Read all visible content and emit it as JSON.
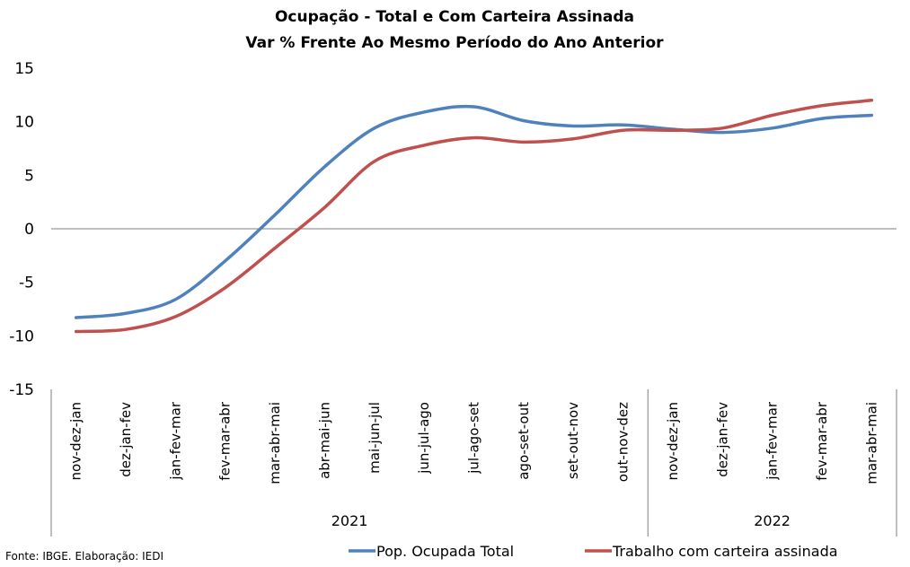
{
  "chart_data": {
    "type": "line",
    "title": "Ocupação - Total e Com Carteira Assinada",
    "subtitle": "Var % Frente Ao Mesmo Período do Ano Anterior",
    "categories": [
      "nov-dez-jan",
      "dez-jan-fev",
      "jan-fev-mar",
      "fev-mar-abr",
      "mar-abr-mai",
      "abr-mai-jun",
      "mai-jun-jul",
      "jun-jul-ago",
      "jul-ago-set",
      "ago-set-out",
      "set-out-nov",
      "out-nov-dez",
      "nov-dez-jan",
      "dez-jan-fev",
      "jan-fev-mar",
      "fev-mar-abr",
      "mar-abr-mai"
    ],
    "groups": [
      {
        "label": "2021",
        "count": 12
      },
      {
        "label": "2022",
        "count": 5
      }
    ],
    "series": [
      {
        "name": "Pop. Ocupada Total",
        "color": "#4F81BD",
        "values": [
          -8.3,
          -7.9,
          -6.6,
          -3.0,
          1.3,
          5.8,
          9.4,
          10.9,
          11.4,
          10.1,
          9.6,
          9.7,
          9.3,
          9.0,
          9.4,
          10.3,
          10.6
        ]
      },
      {
        "name": "Trabalho com carteira assinada",
        "color": "#C0504D",
        "values": [
          -9.6,
          -9.4,
          -8.2,
          -5.5,
          -1.8,
          2.0,
          6.3,
          7.8,
          8.5,
          8.1,
          8.4,
          9.2,
          9.2,
          9.4,
          10.6,
          11.5,
          12.0
        ]
      }
    ],
    "ylim": [
      -15,
      15
    ],
    "yticks": [
      -15,
      -10,
      -5,
      0,
      5,
      10,
      15
    ],
    "xlabel": "",
    "ylabel": "",
    "grid": false,
    "legend_position": "bottom"
  },
  "source_note": "Fonte: IBGE. Elaboração: IEDI"
}
